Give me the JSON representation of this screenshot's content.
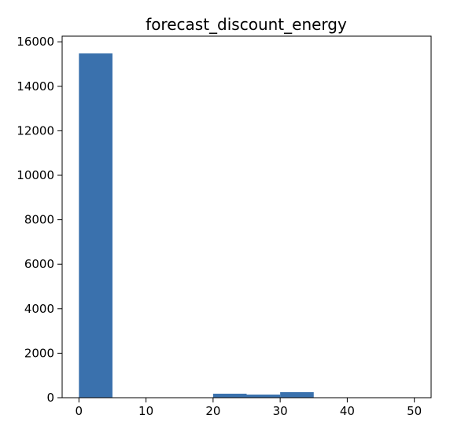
{
  "chart_data": {
    "type": "bar",
    "title": "forecast_discount_energy",
    "xlabel": "",
    "ylabel": "",
    "bins": [
      {
        "start": 0,
        "end": 5,
        "count": 15480
      },
      {
        "start": 5,
        "end": 10,
        "count": 0
      },
      {
        "start": 10,
        "end": 15,
        "count": 0
      },
      {
        "start": 15,
        "end": 20,
        "count": 0
      },
      {
        "start": 20,
        "end": 25,
        "count": 180
      },
      {
        "start": 25,
        "end": 30,
        "count": 140
      },
      {
        "start": 30,
        "end": 35,
        "count": 250
      },
      {
        "start": 35,
        "end": 40,
        "count": 3
      },
      {
        "start": 40,
        "end": 45,
        "count": 2
      },
      {
        "start": 45,
        "end": 50,
        "count": 2
      }
    ],
    "xlim": [
      -2.5,
      52.5
    ],
    "ylim": [
      0,
      16254
    ],
    "xticks": [
      0,
      10,
      20,
      30,
      40,
      50
    ],
    "xtick_labels": [
      "0",
      "10",
      "20",
      "30",
      "40",
      "50"
    ],
    "yticks": [
      0,
      2000,
      4000,
      6000,
      8000,
      10000,
      12000,
      14000,
      16000
    ],
    "ytick_labels": [
      "0",
      "2000",
      "4000",
      "6000",
      "8000",
      "10000",
      "12000",
      "14000",
      "16000"
    ],
    "grid": false,
    "legend": "none",
    "bar_color": "#3a71ad"
  }
}
